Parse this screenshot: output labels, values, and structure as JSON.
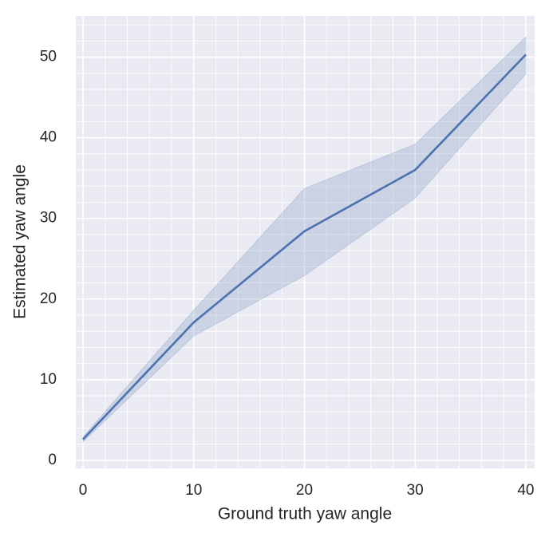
{
  "chart_data": {
    "type": "line",
    "xlabel": "Ground truth yaw angle",
    "ylabel": "Estimated yaw angle",
    "x": [
      0,
      10,
      20,
      30,
      40
    ],
    "series": [
      {
        "color": "#4c72b0",
        "values": [
          2.6,
          17.1,
          28.4,
          36.0,
          50.3
        ],
        "lower": [
          2.3,
          15.4,
          22.9,
          32.5,
          47.9
        ],
        "upper": [
          2.9,
          18.6,
          33.7,
          39.2,
          52.5
        ]
      }
    ],
    "xlim": [
      -0.65,
      40.8
    ],
    "ylim": [
      -1.0,
      55.1
    ],
    "xticks": [
      0,
      10,
      20,
      30,
      40
    ],
    "yticks": [
      0,
      10,
      20,
      30,
      40,
      50
    ],
    "xminorticks": [
      2,
      4,
      6,
      8,
      12,
      14,
      16,
      18,
      22,
      24,
      26,
      28,
      32,
      34,
      36,
      38
    ],
    "yminorticks": [
      2,
      4,
      6,
      8,
      12,
      14,
      16,
      18,
      22,
      24,
      26,
      28,
      32,
      34,
      36,
      38,
      42,
      44,
      46,
      48,
      52,
      54
    ],
    "grid": true,
    "background": "#eaeaf2"
  }
}
